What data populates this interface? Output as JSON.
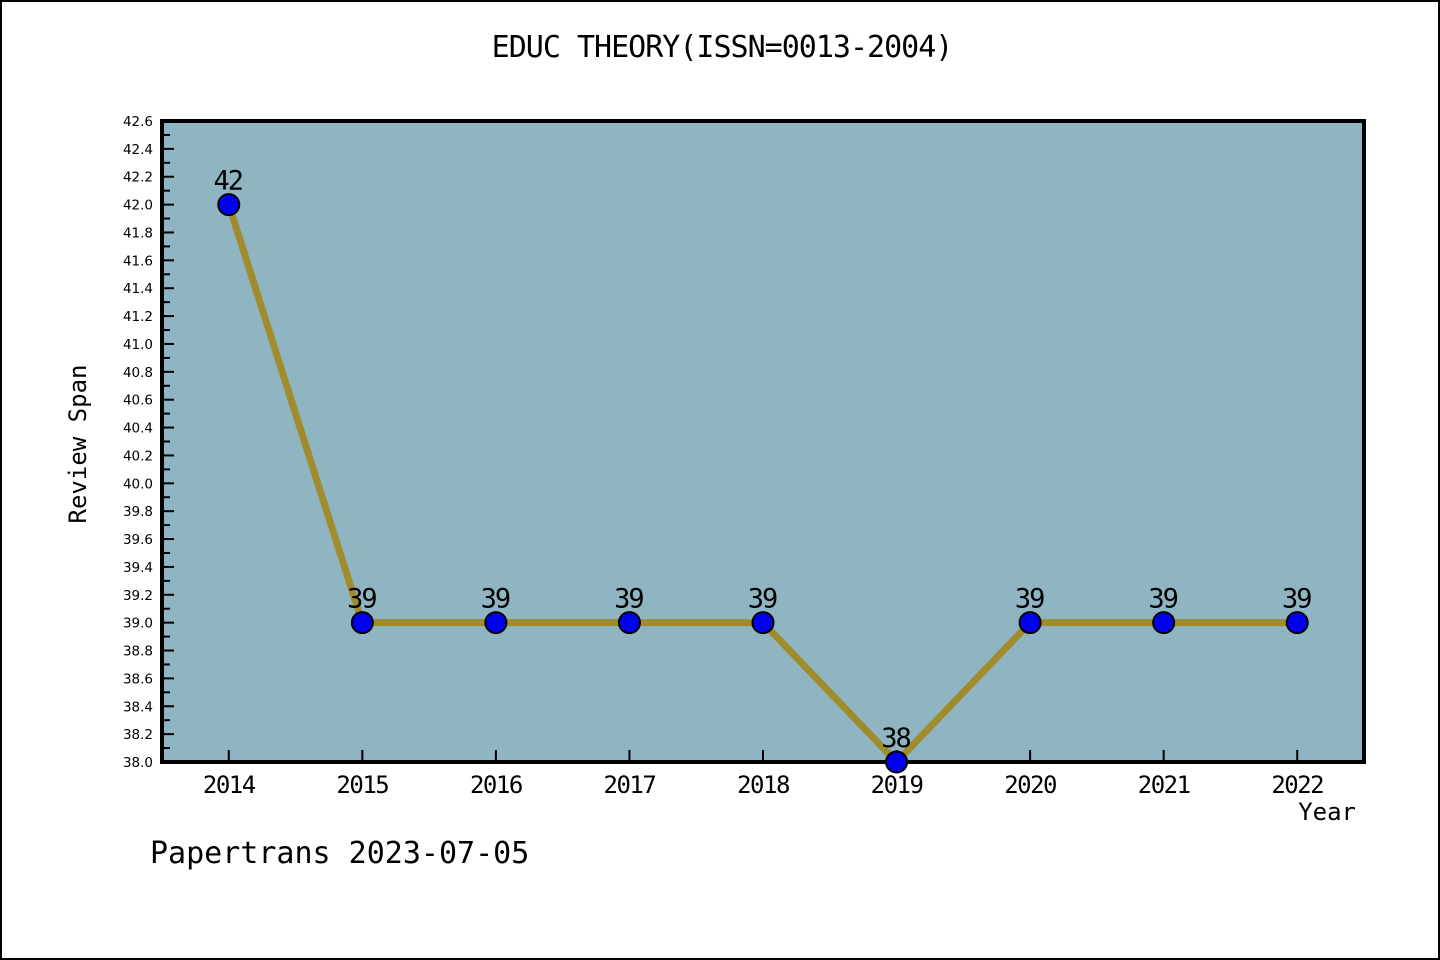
{
  "figure": {
    "footer": "Papertrans 2023-07-05"
  },
  "chart_data": {
    "type": "line",
    "title": "EDUC THEORY(ISSN=0013-2004)",
    "xlabel": "Year",
    "ylabel": "Review Span",
    "x": [
      2014,
      2015,
      2016,
      2017,
      2018,
      2019,
      2020,
      2021,
      2022
    ],
    "series": [
      {
        "name": "Review Span",
        "values": [
          42,
          39,
          39,
          39,
          39,
          38,
          39,
          39,
          39
        ]
      }
    ],
    "point_labels": [
      "42",
      "39",
      "39",
      "39",
      "39",
      "38",
      "39",
      "39",
      "39"
    ],
    "xticks": [
      2014,
      2015,
      2016,
      2017,
      2018,
      2019,
      2020,
      2021,
      2022
    ],
    "xlim": [
      2013.5,
      2022.5
    ],
    "ylim": [
      38.0,
      42.6
    ],
    "ytick_major_step": 0.2,
    "ytick_minor_step": 0.1,
    "grid": false,
    "legend": "none",
    "colors": {
      "figure_background": "#ffffff",
      "figure_border": "#000000",
      "plot_background": "#8fb5c3",
      "line": "#a08c2d",
      "marker_fill": "#0000f0",
      "marker_edge": "#000000",
      "axis": "#000000",
      "text": "#000000"
    }
  }
}
